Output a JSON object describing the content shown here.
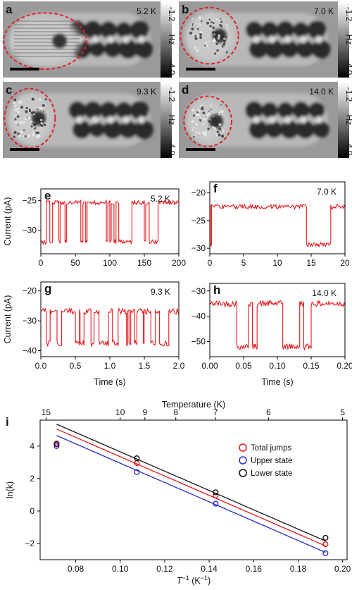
{
  "images": [
    {
      "panel": "a",
      "temp": "5.2 K",
      "cb_top": "-1.2",
      "cb_unit": "Hz",
      "cb_bottom": "-4.0"
    },
    {
      "panel": "b",
      "temp": "7.0 K",
      "cb_top": "-1.2",
      "cb_unit": "Hz",
      "cb_bottom": "-4.0"
    },
    {
      "panel": "c",
      "temp": "9.3 K",
      "cb_top": "-1.2",
      "cb_unit": "Hz",
      "cb_bottom": "-4.0"
    },
    {
      "panel": "d",
      "temp": "14.0 K",
      "cb_top": "-1.2",
      "cb_unit": "Hz",
      "cb_bottom": "-4.0"
    }
  ],
  "colors": {
    "trace": "#e8161b",
    "total": "#e8161b",
    "upper": "#2a2ac8",
    "lower": "#111111",
    "circle": "#e0202a"
  },
  "chart_data": [
    {
      "type": "line",
      "panel": "e",
      "annotation": "5.2 K",
      "xlabel": "",
      "ylabel": "Current (pA)",
      "xlim": [
        0,
        200
      ],
      "ylim": [
        -34,
        -23
      ],
      "xticks": [
        0,
        50,
        100,
        150,
        200
      ],
      "yticks": [
        -25,
        -30
      ],
      "levels": [
        -32,
        -25.3
      ],
      "segments": [
        [
          0,
          8,
          0
        ],
        [
          8,
          13,
          1
        ],
        [
          13,
          17,
          0
        ],
        [
          17,
          26,
          1
        ],
        [
          26,
          28,
          0
        ],
        [
          28,
          35,
          1
        ],
        [
          35,
          37,
          0
        ],
        [
          37,
          58,
          1
        ],
        [
          58,
          61,
          0
        ],
        [
          61,
          65,
          1
        ],
        [
          65,
          67,
          0
        ],
        [
          67,
          95,
          1
        ],
        [
          95,
          97,
          0
        ],
        [
          97,
          100,
          1
        ],
        [
          100,
          102,
          0
        ],
        [
          102,
          106,
          1
        ],
        [
          106,
          109,
          0
        ],
        [
          109,
          113,
          1
        ],
        [
          113,
          132,
          0
        ],
        [
          132,
          150,
          1
        ],
        [
          150,
          152,
          0
        ],
        [
          152,
          157,
          1
        ],
        [
          157,
          170,
          0
        ],
        [
          170,
          178,
          1
        ],
        [
          178,
          200,
          1
        ]
      ],
      "noise": 0.35
    },
    {
      "type": "line",
      "panel": "f",
      "annotation": "7.0 K",
      "xlabel": "",
      "ylabel": "",
      "xlim": [
        0,
        20
      ],
      "ylim": [
        -31,
        -18
      ],
      "xticks": [
        0,
        5,
        10,
        15,
        20
      ],
      "yticks": [
        -20,
        -25,
        -30
      ],
      "levels": [
        -29.3,
        -22.5
      ],
      "switch_rate": 4.5,
      "seed": 7,
      "noise": 0.4
    },
    {
      "type": "line",
      "panel": "g",
      "annotation": "9.3 K",
      "xlabel": "Time (s)",
      "ylabel": "Current (pA)",
      "xlim": [
        0,
        2
      ],
      "ylim": [
        -42,
        -17
      ],
      "xticks": [
        0.0,
        0.5,
        1.0,
        1.5,
        2.0
      ],
      "yticks": [
        -20,
        -30,
        -40
      ],
      "levels": [
        -37.5,
        -26.8
      ],
      "switch_rate": 18,
      "seed": 11,
      "noise": 1.0
    },
    {
      "type": "line",
      "panel": "h",
      "annotation": "14.0 K",
      "xlabel": "Time (s)",
      "ylabel": "",
      "xlim": [
        0,
        0.2
      ],
      "ylim": [
        -56,
        -27
      ],
      "xticks": [
        0.0,
        0.05,
        0.1,
        0.15,
        0.2
      ],
      "yticks": [
        -30,
        -40,
        -50
      ],
      "levels": [
        -52,
        -35
      ],
      "segments": [
        [
          0,
          0.04,
          1
        ],
        [
          0.04,
          0.057,
          0
        ],
        [
          0.057,
          0.063,
          1
        ],
        [
          0.063,
          0.07,
          0
        ],
        [
          0.07,
          0.108,
          1
        ],
        [
          0.108,
          0.133,
          0
        ],
        [
          0.133,
          0.139,
          1
        ],
        [
          0.139,
          0.15,
          0
        ],
        [
          0.15,
          0.2,
          1
        ]
      ],
      "noise": 1.2
    },
    {
      "type": "scatter",
      "panel": "i",
      "xlabel": "T",
      "xlabel_sup": "−1",
      "xlabel_unit": "(K",
      "xlabel_unit_sup": "−1",
      "xlabel_close": ")",
      "ylabel": "ln(k)",
      "top_label": "Temperature (K)",
      "xlim": [
        0.064,
        0.202
      ],
      "ylim": [
        -3.0,
        5.6
      ],
      "xticks": [
        0.08,
        0.1,
        0.12,
        0.14,
        0.16,
        0.18,
        0.2
      ],
      "yticks": [
        4,
        2,
        0,
        -2
      ],
      "top_ticks": [
        15,
        10,
        9,
        8,
        7,
        6,
        5
      ],
      "series": [
        {
          "name": "Total jumps",
          "key": "total",
          "x": [
            0.0714,
            0.1075,
            0.1429,
            0.1923
          ],
          "y": [
            4.1,
            2.95,
            0.95,
            -2.05
          ],
          "fit": [
            [
              0.0714,
              5.05
            ],
            [
              0.1923,
              -2.15
            ]
          ]
        },
        {
          "name": "Upper state",
          "key": "upper",
          "x": [
            0.0714,
            0.1075,
            0.1429,
            0.1923
          ],
          "y": [
            4.0,
            2.4,
            0.45,
            -2.6
          ],
          "fit": [
            [
              0.0714,
              4.65
            ],
            [
              0.1923,
              -2.55
            ]
          ]
        },
        {
          "name": "Lower state",
          "key": "lower",
          "x": [
            0.0714,
            0.1075,
            0.1429,
            0.1923
          ],
          "y": [
            4.15,
            3.25,
            1.15,
            -1.65
          ],
          "fit": [
            [
              0.0714,
              5.35
            ],
            [
              0.1923,
              -1.85
            ]
          ]
        }
      ]
    }
  ]
}
